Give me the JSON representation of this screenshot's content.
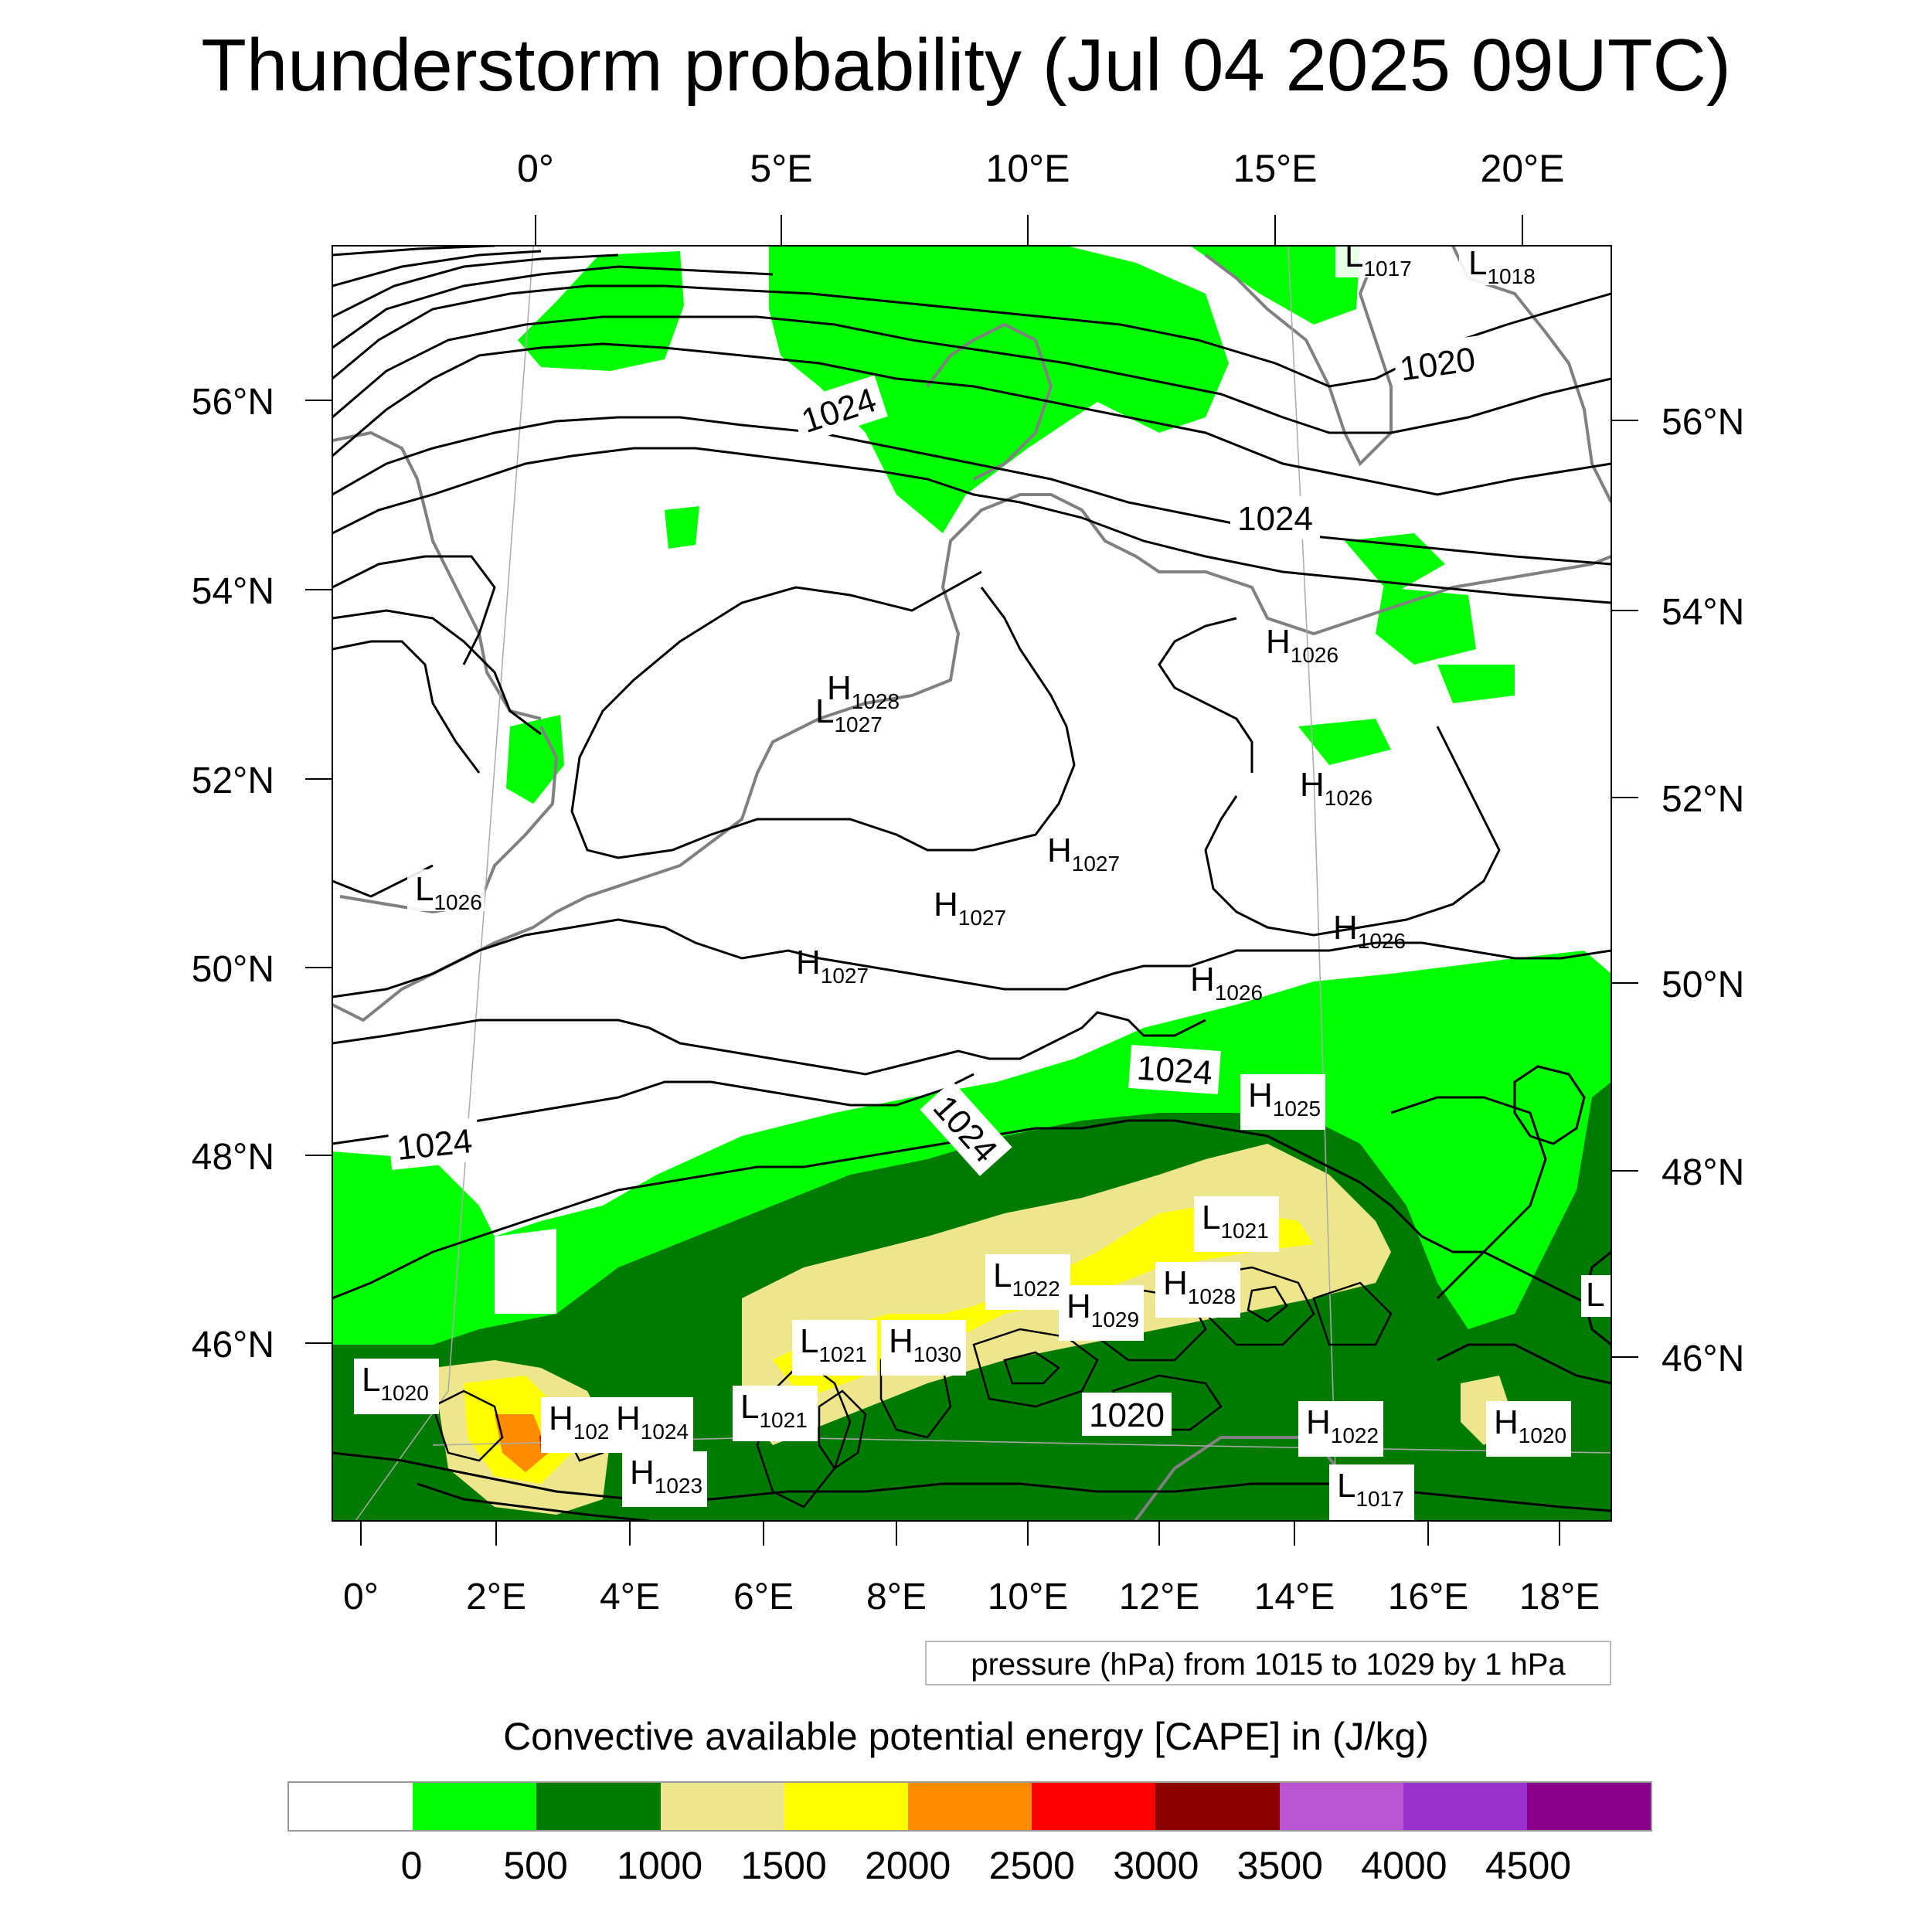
{
  "title": "Thunderstorm probability (Jul 04 2025 09UTC)",
  "colors": {
    "cape_0": "#00ff00",
    "cape_500": "#007a00",
    "cape_1000": "#eee68c",
    "cape_1500": "#ffff00",
    "cape_2000": "#ff8c00",
    "cape_2500": "#ff0000",
    "coastline": "#808080",
    "isobar": "#000000"
  },
  "top_lon_labels": [
    "0°",
    "5°E",
    "10°E",
    "15°E",
    "20°E"
  ],
  "bottom_lon_labels": [
    "0°",
    "2°E",
    "4°E",
    "6°E",
    "8°E",
    "10°E",
    "12°E",
    "14°E",
    "16°E",
    "18°E"
  ],
  "left_lat_labels": [
    "56°N",
    "54°N",
    "52°N",
    "50°N",
    "48°N",
    "46°N"
  ],
  "right_lat_labels": [
    "56°N",
    "54°N",
    "52°N",
    "50°N",
    "48°N",
    "46°N"
  ],
  "isobar_labels": [
    "1020",
    "1024",
    "1024",
    "1024",
    "1024",
    "1024",
    "1020"
  ],
  "pressure_centers": [
    {
      "type": "L",
      "value": "1017"
    },
    {
      "type": "L",
      "value": "1018"
    },
    {
      "type": "H",
      "value": "1028"
    },
    {
      "type": "L",
      "value": "1027"
    },
    {
      "type": "L",
      "value": "1026"
    },
    {
      "type": "H",
      "value": "1026"
    },
    {
      "type": "H",
      "value": "1026"
    },
    {
      "type": "H",
      "value": "1027"
    },
    {
      "type": "H",
      "value": "1027"
    },
    {
      "type": "H",
      "value": "1027"
    },
    {
      "type": "H",
      "value": "1026"
    },
    {
      "type": "H",
      "value": "1026"
    },
    {
      "type": "H",
      "value": "1025"
    },
    {
      "type": "L",
      "value": "1021"
    },
    {
      "type": "L",
      "value": "1022"
    },
    {
      "type": "H",
      "value": "1028"
    },
    {
      "type": "H",
      "value": "1029"
    },
    {
      "type": "L",
      "value": "1021"
    },
    {
      "type": "H",
      "value": "1030"
    },
    {
      "type": "L",
      "value": "1020"
    },
    {
      "type": "H",
      "value": "102"
    },
    {
      "type": "H",
      "value": "1024"
    },
    {
      "type": "L",
      "value": "1021"
    },
    {
      "type": "H",
      "value": "1023"
    },
    {
      "type": "H",
      "value": "1022"
    },
    {
      "type": "H",
      "value": "1020"
    },
    {
      "type": "L",
      "value": "1017"
    },
    {
      "type": "L",
      "value": ""
    }
  ],
  "contour_info": "pressure (hPa) from 1015 to 1029 by 1 hPa",
  "colorbar": {
    "title": "Convective available potential energy [CAPE] in (J/kg)",
    "colors": [
      "#ffffff",
      "#00ff00",
      "#007a00",
      "#eee68c",
      "#ffff00",
      "#ff8c00",
      "#ff0000",
      "#8b0000",
      "#ba55d3",
      "#9932cc",
      "#8b008b"
    ],
    "tick_labels": [
      "0",
      "500",
      "1000",
      "1500",
      "2000",
      "2500",
      "3000",
      "3500",
      "4000",
      "4500"
    ]
  }
}
